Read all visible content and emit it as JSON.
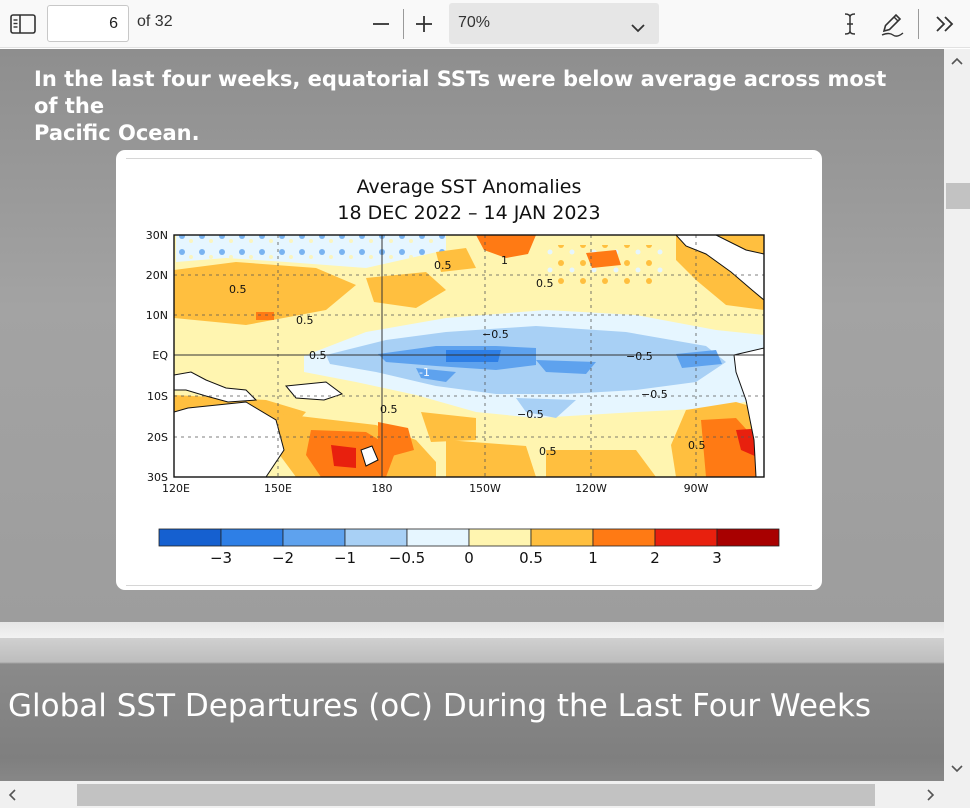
{
  "toolbar": {
    "page_number": "6",
    "page_total_label": "of 32",
    "zoom_value": "70%",
    "icons": {
      "sidebar": "sidebar-toggle-icon",
      "zoom_out": "minus-icon",
      "zoom_in": "plus-icon",
      "zoom_dropdown": "chevron-down-icon",
      "text_select": "text-cursor-icon",
      "draw": "pen-icon",
      "more": "double-chevron-right-icon"
    }
  },
  "slide1": {
    "caption_line1": "In the last four weeks, equatorial SSTs were below average across most of the",
    "caption_line2": "Pacific Ocean.",
    "figure": {
      "title_line1": "Average SST Anomalies",
      "title_line2": "18 DEC 2022 – 14 JAN 2023",
      "lat_labels": [
        "30N",
        "20N",
        "10N",
        "EQ",
        "10S",
        "20S",
        "30S"
      ],
      "lon_labels": [
        "120E",
        "150E",
        "180",
        "150W",
        "120W",
        "90W"
      ],
      "contour_labels": [
        "0.5",
        "0.5",
        "0.5",
        "1",
        "0.5",
        "0.5",
        "−0.5",
        "-1",
        "0.5",
        "−0.5",
        "−0.5",
        "−0.5",
        "0.5",
        "0.5"
      ],
      "colorbar_labels": [
        "−3",
        "−2",
        "−1",
        "−0.5",
        "0",
        "0.5",
        "1",
        "2",
        "3"
      ],
      "colorbar_colors": [
        "#1560d0",
        "#2e7fe6",
        "#5ea2ee",
        "#a8d0f5",
        "#e6f6ff",
        "#fff5b0",
        "#ffbf3f",
        "#ff7a14",
        "#e8200e",
        "#a80000"
      ]
    }
  },
  "slide2": {
    "title": "Global SST Departures (oC) During the Last Four Weeks"
  }
}
